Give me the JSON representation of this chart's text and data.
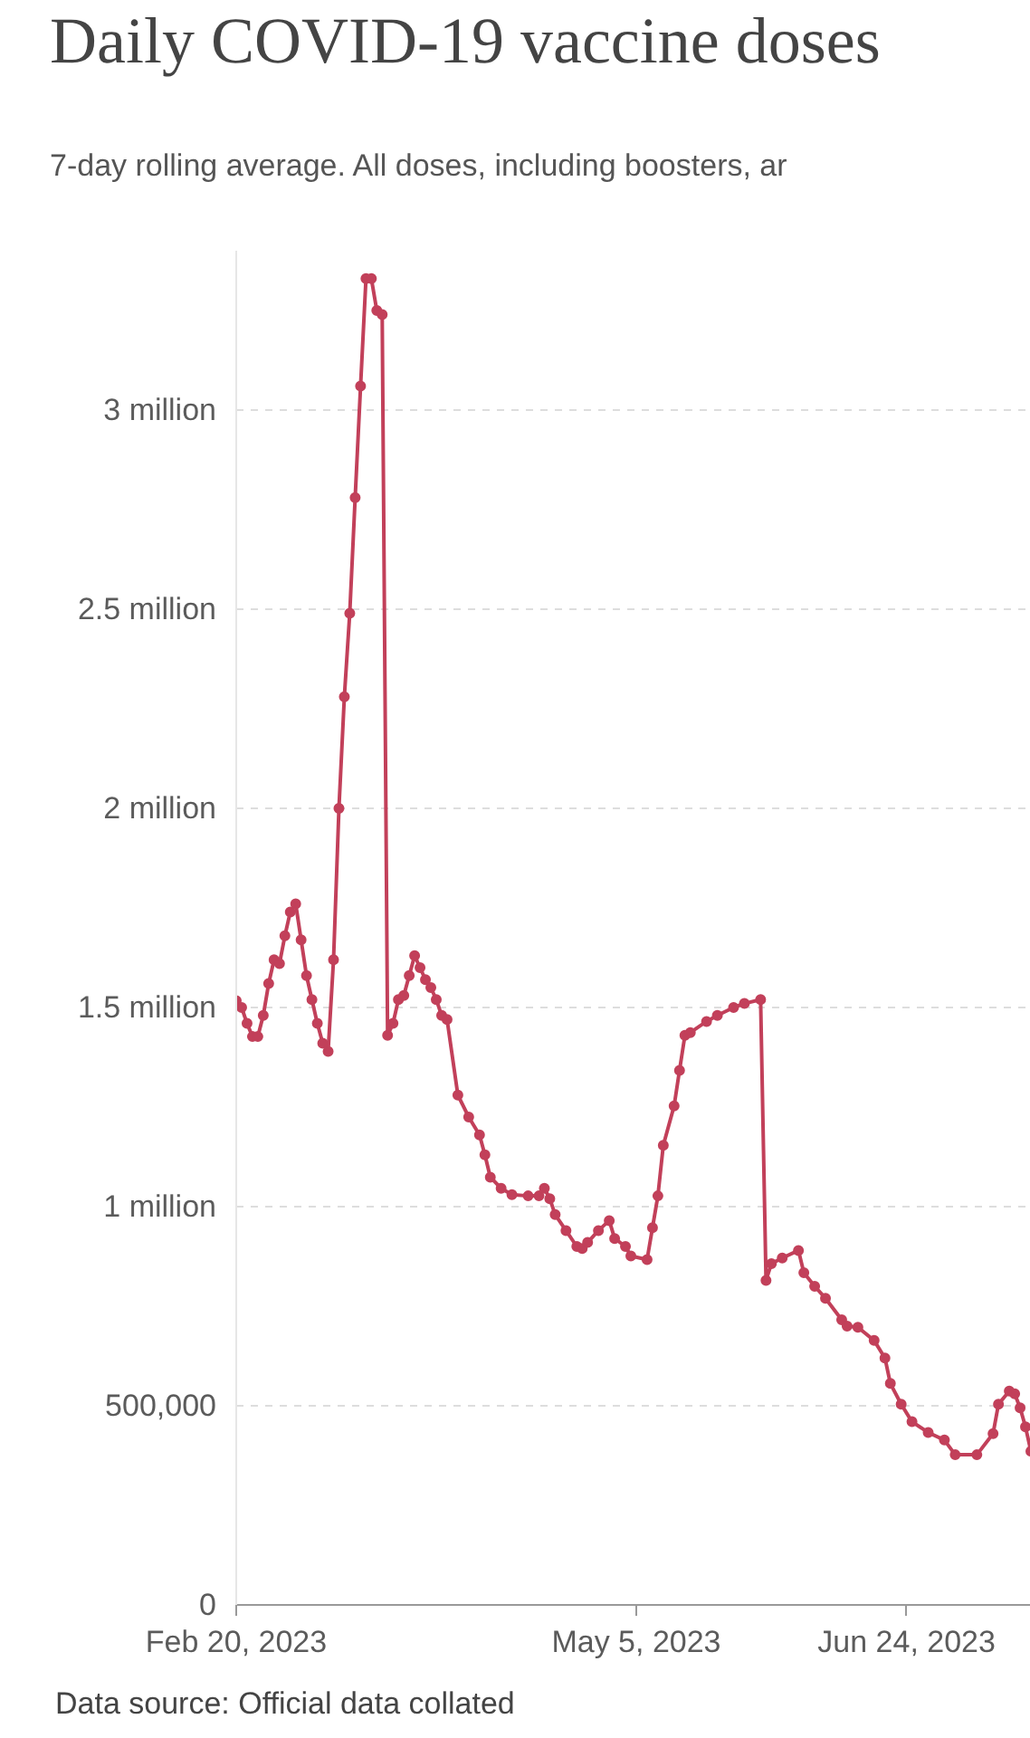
{
  "chart_data": {
    "type": "line",
    "title": "Daily COVID-19 vaccine doses",
    "subtitle": "7-day rolling average. All doses, including boosters, ar",
    "annotations": [
      "Data source: Official data collated"
    ],
    "x": [
      "2023-02-20",
      "2023-02-21",
      "2023-02-22",
      "2023-02-23",
      "2023-02-24",
      "2023-02-25",
      "2023-02-26",
      "2023-02-27",
      "2023-02-28",
      "2023-03-01",
      "2023-03-02",
      "2023-03-03",
      "2023-03-04",
      "2023-03-05",
      "2023-03-06",
      "2023-03-07",
      "2023-03-08",
      "2023-03-09",
      "2023-03-10",
      "2023-03-11",
      "2023-03-12",
      "2023-03-13",
      "2023-03-14",
      "2023-03-15",
      "2023-03-16",
      "2023-03-17",
      "2023-03-18",
      "2023-03-19",
      "2023-03-20",
      "2023-03-21",
      "2023-03-22",
      "2023-03-23",
      "2023-03-24",
      "2023-03-25",
      "2023-03-26",
      "2023-03-27",
      "2023-03-28",
      "2023-03-29",
      "2023-03-30",
      "2023-03-31",
      "2023-04-02",
      "2023-04-04",
      "2023-04-06",
      "2023-04-07",
      "2023-04-08",
      "2023-04-10",
      "2023-04-12",
      "2023-04-15",
      "2023-04-17",
      "2023-04-18",
      "2023-04-19",
      "2023-04-20",
      "2023-04-22",
      "2023-04-24",
      "2023-04-25",
      "2023-04-26",
      "2023-04-28",
      "2023-04-30",
      "2023-05-01",
      "2023-05-03",
      "2023-05-04",
      "2023-05-07",
      "2023-05-08",
      "2023-05-09",
      "2023-05-10",
      "2023-05-12",
      "2023-05-13",
      "2023-05-14",
      "2023-05-15",
      "2023-05-18",
      "2023-05-20",
      "2023-05-23",
      "2023-05-25",
      "2023-05-28",
      "2023-05-29",
      "2023-05-30",
      "2023-06-01",
      "2023-06-04",
      "2023-06-05",
      "2023-06-07",
      "2023-06-09",
      "2023-06-12",
      "2023-06-13",
      "2023-06-15",
      "2023-06-18",
      "2023-06-20",
      "2023-06-21",
      "2023-06-23",
      "2023-06-25",
      "2023-06-28",
      "2023-07-01",
      "2023-07-03",
      "2023-07-07",
      "2023-07-10",
      "2023-07-11",
      "2023-07-13",
      "2023-07-14",
      "2023-07-15",
      "2023-07-16",
      "2023-07-17"
    ],
    "series": [
      {
        "color": "#c2405a",
        "values": [
          1517000,
          1500000,
          1460000,
          1427000,
          1427000,
          1480000,
          1560000,
          1620000,
          1610000,
          1680000,
          1740000,
          1760000,
          1670000,
          1580000,
          1520000,
          1460000,
          1410000,
          1390000,
          1620000,
          2000000,
          2280000,
          2490000,
          2780000,
          3060000,
          3330000,
          3330000,
          3250000,
          3240000,
          1430000,
          1460000,
          1520000,
          1530000,
          1580000,
          1630000,
          1600000,
          1570000,
          1550000,
          1520000,
          1480000,
          1470000,
          1280000,
          1225000,
          1180000,
          1130000,
          1074000,
          1046000,
          1030000,
          1027000,
          1027000,
          1046000,
          1020000,
          980000,
          940000,
          900000,
          895000,
          910000,
          940000,
          965000,
          920000,
          900000,
          876000,
          867000,
          947000,
          1027000,
          1154000,
          1253000,
          1342000,
          1430000,
          1437000,
          1465000,
          1480000,
          1500000,
          1510000,
          1520000,
          815000,
          857000,
          871000,
          890000,
          834000,
          800000,
          770000,
          716000,
          700000,
          697000,
          664000,
          620000,
          556000,
          504000,
          460000,
          433000,
          414000,
          377000,
          377000,
          430000,
          504000,
          537000,
          530000,
          495000,
          447000,
          386000
        ]
      }
    ],
    "xlim": [
      "2023-02-20",
      "2023-07-17"
    ],
    "xticks": [
      {
        "value": "2023-02-20",
        "label": "Feb 20, 2023"
      },
      {
        "value": "2023-05-05",
        "label": "May 5, 2023"
      },
      {
        "value": "2023-06-24",
        "label": "Jun 24, 2023"
      }
    ],
    "yticks": [
      {
        "value": 0,
        "label": "0"
      },
      {
        "value": 500000,
        "label": "500,000"
      },
      {
        "value": 1000000,
        "label": "1 million"
      },
      {
        "value": 1500000,
        "label": "1.5 million"
      },
      {
        "value": 2000000,
        "label": "2 million"
      },
      {
        "value": 2500000,
        "label": "2.5 million"
      },
      {
        "value": 3000000,
        "label": "3 million"
      }
    ],
    "ylim": [
      0,
      3400000
    ],
    "grid": "y",
    "marker": "circle",
    "line_style": "solid"
  }
}
